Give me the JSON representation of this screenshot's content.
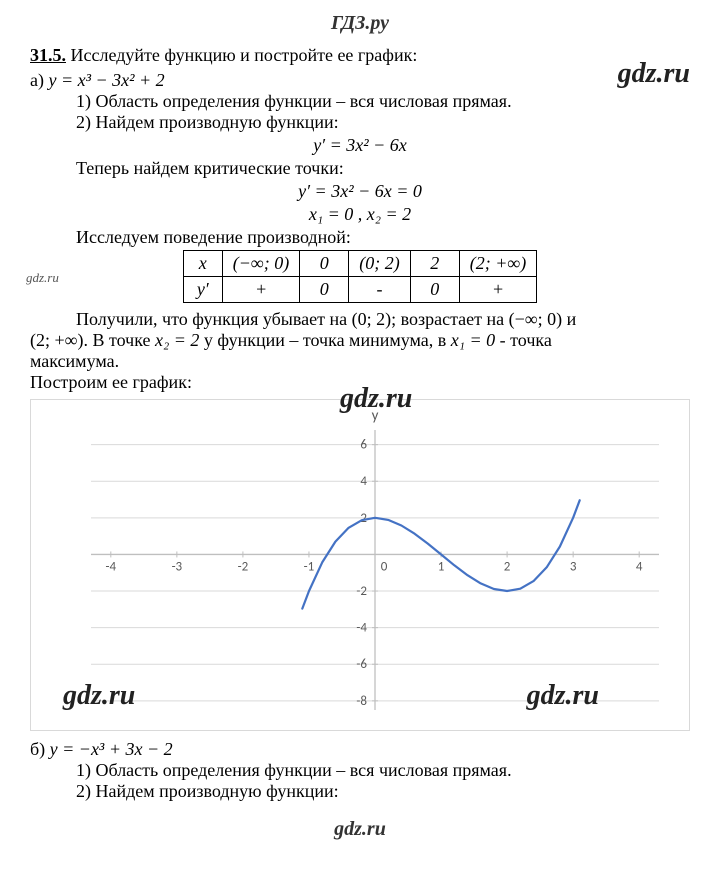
{
  "logo_top": "ГДЗ.ру",
  "watermark_text": "gdz.ru",
  "problem": {
    "number": "31.5.",
    "title": "Исследуйте функцию и постройте ее график:"
  },
  "partA": {
    "letter": "а)",
    "func_html": "y = x³ − 3x² + 2",
    "step1": "1) Область определения функции – вся числовая прямая.",
    "step2": "2) Найдем производную функции:",
    "deriv_html": "y′ = 3x² − 6x",
    "crit_intro": "Теперь найдем критические точки:",
    "crit_eq1": "y′ = 3x² − 6x = 0",
    "crit_eq2": "x₁ = 0 ,   x₂ = 2",
    "table_intro": "Исследуем поведение производной:",
    "table": {
      "row1": [
        "x",
        "(−∞; 0)",
        "0",
        "(0; 2)",
        "2",
        "(2; +∞)"
      ],
      "row2": [
        "y′",
        "+",
        "0",
        "-",
        "0",
        "+"
      ]
    },
    "analysis_line1": "Получили, что функция убывает на (0; 2); возрастает на (−∞; 0) и",
    "analysis_line2_prefix": "(2; +∞). В точке ",
    "analysis_x2": "x₂ = 2",
    "analysis_line2_mid": " у функции – точка минимума, в ",
    "analysis_x1": "x₁ = 0",
    "analysis_line2_suffix": " - точка",
    "analysis_line3": "максимума.",
    "build_label": "Построим ее график:",
    "chart": {
      "axis_label_y": "y",
      "x_ticks": [
        -4,
        -3,
        -2,
        -1,
        0,
        1,
        2,
        3,
        4
      ],
      "y_ticks": [
        -8,
        -6,
        -4,
        -2,
        0,
        2,
        4,
        6
      ],
      "x_range": [
        -4.3,
        4.3
      ],
      "y_range": [
        -8.5,
        6.8
      ],
      "axis_color": "#bfbfbf",
      "grid_color": "#d9d9d9",
      "tick_label_color": "#595959",
      "tick_fontsize": 13,
      "axis_label_fontsize": 15,
      "curve_color": "#4472c4",
      "curve_width": 2.2,
      "curve_points_x": [
        -1.1,
        -1,
        -0.8,
        -0.6,
        -0.4,
        -0.2,
        0,
        0.2,
        0.4,
        0.6,
        0.8,
        1,
        1.2,
        1.4,
        1.6,
        1.8,
        2,
        2.2,
        2.4,
        2.6,
        2.8,
        3,
        3.1
      ],
      "curve_points_y": [
        -2.961,
        -2,
        -0.432,
        0.704,
        1.456,
        1.872,
        2,
        1.888,
        1.584,
        1.136,
        0.592,
        0,
        -0.592,
        -1.136,
        -1.584,
        -1.888,
        -2,
        -1.872,
        -1.456,
        -0.704,
        0.432,
        2,
        2.961
      ]
    }
  },
  "partB": {
    "letter": "б)",
    "func_html": "y = −x³ + 3x − 2",
    "step1": "1) Область определения функции – вся числовая прямая.",
    "step2": "2) Найдем производную функции:"
  },
  "footer_logo": "gdz.ru"
}
